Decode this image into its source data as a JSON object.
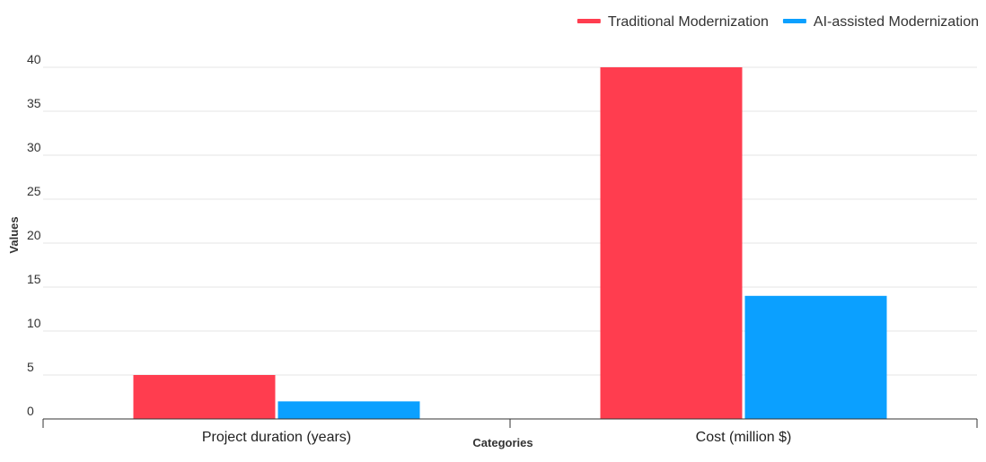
{
  "chart_data": {
    "type": "bar",
    "categories": [
      "Project duration (years)",
      "Cost (million $)"
    ],
    "series": [
      {
        "name": "Traditional Modernization",
        "values": [
          5,
          40
        ],
        "color": "#ff3d4f"
      },
      {
        "name": "AI-assisted Modernization",
        "values": [
          2,
          14
        ],
        "color": "#0ba0ff"
      }
    ],
    "xlabel": "Categories",
    "ylabel": "Values",
    "ylim": [
      0,
      40
    ],
    "yticks": [
      0,
      5,
      10,
      15,
      20,
      25,
      30,
      35,
      40
    ],
    "grid": true,
    "legend_position": "top-right"
  }
}
